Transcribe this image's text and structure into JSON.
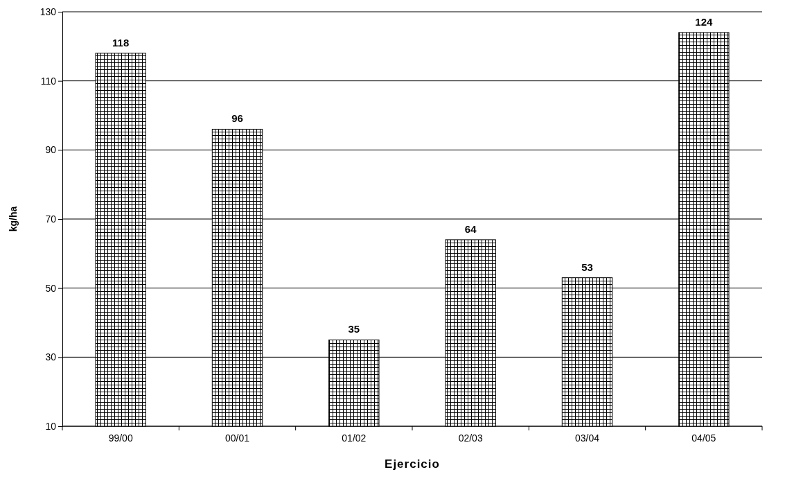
{
  "chart_data": {
    "type": "bar",
    "xlabel": "Ejercicio",
    "ylabel": "kg/ha",
    "categories": [
      "99/00",
      "00/01",
      "01/02",
      "02/03",
      "03/04",
      "04/05"
    ],
    "values": [
      118,
      96,
      35,
      64,
      53,
      124
    ],
    "color": "#000000",
    "ylim": [
      10,
      130
    ],
    "yticks": [
      10,
      30,
      50,
      70,
      90,
      110,
      130
    ],
    "grid": "y",
    "data_labels": true
  }
}
